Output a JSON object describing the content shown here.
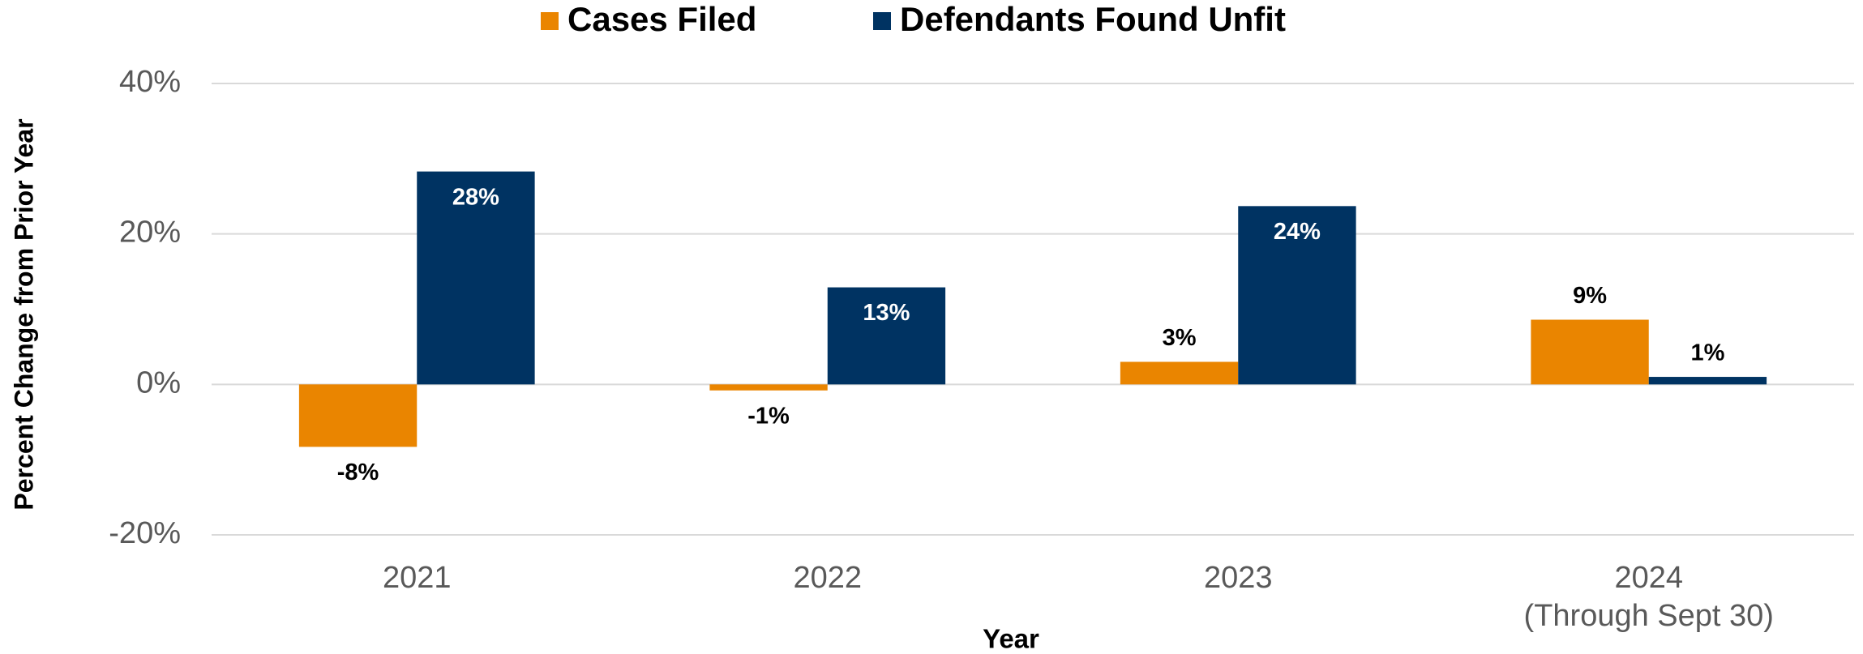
{
  "chart_data": {
    "type": "bar",
    "categories": [
      "2021",
      "2022",
      "2023",
      "2024\n(Through Sept 30)"
    ],
    "series": [
      {
        "name": "Cases Filed",
        "color": "#ea8500",
        "values": [
          -8.3,
          -0.8,
          3.0,
          8.6
        ],
        "value_labels": [
          "-8%",
          "-1%",
          "3%",
          "9%"
        ]
      },
      {
        "name": "Defendants Found Unfit",
        "color": "#003362",
        "values": [
          28.3,
          12.9,
          23.7,
          1.0
        ],
        "value_labels": [
          "28%",
          "13%",
          "24%",
          "1%"
        ]
      }
    ],
    "ylim": [
      -20,
      40
    ],
    "yticks": [
      {
        "value": -20,
        "label": "-20%"
      },
      {
        "value": 0,
        "label": "0%"
      },
      {
        "value": 20,
        "label": "20%"
      },
      {
        "value": 40,
        "label": "40%"
      }
    ],
    "xlabel": "Year",
    "ylabel": "Percent Change from Prior Year",
    "grid": true,
    "legend": "top"
  }
}
